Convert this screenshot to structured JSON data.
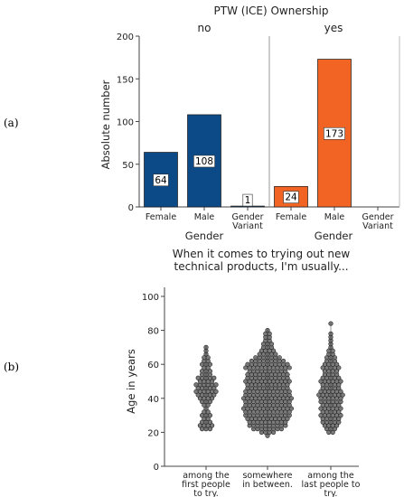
{
  "panel_labels": {
    "a": "(a)",
    "b": "(b)"
  },
  "colors": {
    "no": "#0b4a86",
    "yes": "#f26424",
    "dot_fill": "#7a7a7a",
    "dot_stroke": "#202020",
    "axis": "#444444"
  },
  "chart_data": [
    {
      "type": "bar",
      "title": "PTW (ICE) Ownership",
      "facet_labels": [
        "no",
        "yes"
      ],
      "categories": [
        "Female",
        "Male",
        "Gender Variant"
      ],
      "category_lines": [
        [
          "Female"
        ],
        [
          "Male"
        ],
        [
          "Gender",
          "Variant"
        ]
      ],
      "series": [
        {
          "name": "no",
          "values": [
            64,
            108,
            1
          ]
        },
        {
          "name": "yes",
          "values": [
            24,
            173,
            0
          ]
        }
      ],
      "data_labels": [
        [
          "64",
          "108",
          "1"
        ],
        [
          "24",
          "173",
          ""
        ]
      ],
      "xlabel": "Gender",
      "ylabel": "Absolute number",
      "ylim": [
        0,
        200
      ],
      "yticks": [
        0,
        50,
        100,
        150,
        200
      ],
      "grid": false
    },
    {
      "type": "scatter",
      "title_lines": [
        "When it comes to trying out new",
        "technical products, I'm usually..."
      ],
      "categories": [
        "among the first people to try.",
        "somewhere in between.",
        "among the last people to try."
      ],
      "category_lines": [
        [
          "among the",
          "first people",
          "to try."
        ],
        [
          "somewhere",
          "in between."
        ],
        [
          "among the",
          "last people to",
          "try."
        ]
      ],
      "ylabel": "Age in years",
      "ylim": [
        0,
        100
      ],
      "yticks": [
        0,
        20,
        40,
        60,
        80,
        100
      ],
      "grid": false,
      "groups": [
        {
          "min": 22,
          "max": 71,
          "bins": [
            [
              22,
              3
            ],
            [
              24,
              4
            ],
            [
              26,
              3
            ],
            [
              28,
              2
            ],
            [
              30,
              3
            ],
            [
              32,
              2
            ],
            [
              34,
              1
            ],
            [
              36,
              2
            ],
            [
              38,
              3
            ],
            [
              40,
              4
            ],
            [
              42,
              5
            ],
            [
              44,
              6
            ],
            [
              46,
              5
            ],
            [
              48,
              6
            ],
            [
              50,
              4
            ],
            [
              52,
              5
            ],
            [
              54,
              3
            ],
            [
              56,
              3
            ],
            [
              58,
              2
            ],
            [
              60,
              3
            ],
            [
              62,
              2
            ],
            [
              64,
              2
            ],
            [
              66,
              1
            ],
            [
              68,
              1
            ],
            [
              70,
              1
            ]
          ]
        },
        {
          "min": 18,
          "max": 81,
          "bins": [
            [
              18,
              1
            ],
            [
              20,
              4
            ],
            [
              22,
              8
            ],
            [
              24,
              10
            ],
            [
              26,
              10
            ],
            [
              28,
              11
            ],
            [
              30,
              12
            ],
            [
              32,
              12
            ],
            [
              34,
              13
            ],
            [
              36,
              12
            ],
            [
              38,
              12
            ],
            [
              40,
              13
            ],
            [
              42,
              12
            ],
            [
              44,
              12
            ],
            [
              46,
              11
            ],
            [
              48,
              11
            ],
            [
              50,
              12
            ],
            [
              52,
              11
            ],
            [
              54,
              11
            ],
            [
              56,
              10
            ],
            [
              58,
              12
            ],
            [
              60,
              11
            ],
            [
              62,
              9
            ],
            [
              64,
              7
            ],
            [
              66,
              5
            ],
            [
              68,
              4
            ],
            [
              70,
              3
            ],
            [
              72,
              3
            ],
            [
              74,
              2
            ],
            [
              76,
              2
            ],
            [
              78,
              2
            ],
            [
              80,
              1
            ]
          ]
        },
        {
          "min": 20,
          "max": 84,
          "bins": [
            [
              20,
              2
            ],
            [
              22,
              3
            ],
            [
              24,
              4
            ],
            [
              26,
              5
            ],
            [
              28,
              5
            ],
            [
              30,
              6
            ],
            [
              32,
              5
            ],
            [
              34,
              6
            ],
            [
              36,
              5
            ],
            [
              38,
              6
            ],
            [
              40,
              6
            ],
            [
              42,
              7
            ],
            [
              44,
              6
            ],
            [
              46,
              5
            ],
            [
              48,
              5
            ],
            [
              50,
              6
            ],
            [
              52,
              5
            ],
            [
              54,
              4
            ],
            [
              56,
              4
            ],
            [
              58,
              5
            ],
            [
              60,
              4
            ],
            [
              62,
              3
            ],
            [
              64,
              3
            ],
            [
              66,
              2
            ],
            [
              68,
              2
            ],
            [
              70,
              1
            ],
            [
              72,
              1
            ],
            [
              74,
              1
            ],
            [
              76,
              1
            ],
            [
              78,
              1
            ],
            [
              84,
              1
            ]
          ]
        }
      ]
    }
  ]
}
